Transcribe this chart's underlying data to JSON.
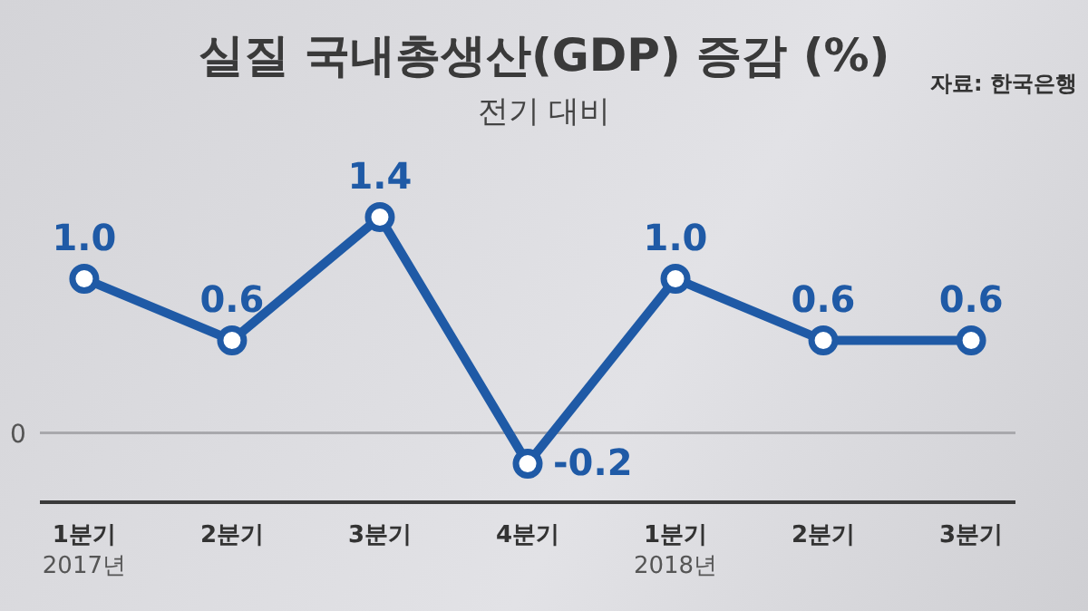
{
  "chart_data": {
    "type": "line",
    "title": "실질 국내총생산(GDP) 증감 (%)",
    "subtitle": "전기 대비",
    "annotations": [
      "자료: 한국은행"
    ],
    "categories": [
      "1분기\n2017년",
      "2분기",
      "3분기",
      "4분기",
      "1분기\n2018년",
      "2분기",
      "3분기"
    ],
    "series": [
      {
        "color": "#1f5aa6",
        "values": [
          1.0,
          0.6,
          1.4,
          -0.2,
          1.0,
          0.6,
          0.6
        ],
        "value_labels": [
          "1.0",
          "0.6",
          "1.4",
          "-0.2",
          "1.0",
          "0.6",
          "0.6"
        ]
      }
    ],
    "ref_lines": [
      {
        "axis": "y",
        "value": 0,
        "label": "0",
        "color": "#a8a8ac"
      }
    ],
    "marker": "circle",
    "line_style": "solid",
    "grid": false,
    "legend": false
  }
}
